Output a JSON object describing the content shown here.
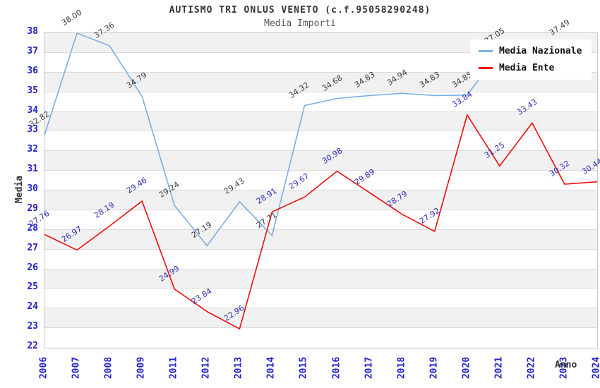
{
  "title": "AUTISMO TRI ONLUS VENETO (c.f.95058290248)",
  "subtitle": "Media Importi",
  "axes": {
    "y_label": "Media",
    "x_label": "Anno"
  },
  "colors": {
    "tick_label": "#2222cc",
    "grid_line": "#dcdcdc",
    "band_gray": "#f1f1f1",
    "band_white": "#ffffff",
    "plot_border": "#c9c9c9",
    "dark_text": "#333333"
  },
  "chart_data": {
    "type": "line",
    "title": "AUTISMO TRI ONLUS VENETO (c.f.95058290248)",
    "subtitle": "Media Importi",
    "xlabel": "Anno",
    "ylabel": "Media",
    "ylim": [
      22,
      38
    ],
    "yticks": [
      38,
      37,
      36,
      35,
      34,
      33,
      32,
      31,
      30,
      29,
      28,
      27,
      26,
      25,
      24,
      23,
      22
    ],
    "grid": "zebra-bands",
    "legend_position": "top-right",
    "x": [
      "2006",
      "2007",
      "2008",
      "2009",
      "2011",
      "2012",
      "2013",
      "2014",
      "2015",
      "2016",
      "2017",
      "2018",
      "2019",
      "2020",
      "2021",
      "2022",
      "2023",
      "2024"
    ],
    "series": [
      {
        "name": "Media Nazionale",
        "color": "#79afe5",
        "label_color": "#3c3c3c",
        "values": [
          32.82,
          38.0,
          37.36,
          34.79,
          29.24,
          27.19,
          29.43,
          27.71,
          34.32,
          34.68,
          34.83,
          34.94,
          34.83,
          34.85,
          37.05,
          null,
          37.49,
          null
        ]
      },
      {
        "name": "Media Ente",
        "color": "#ee0d0d",
        "label_color": "#2d2db4",
        "values": [
          27.76,
          26.97,
          28.19,
          29.46,
          24.99,
          23.84,
          22.96,
          28.91,
          29.67,
          30.98,
          29.89,
          28.79,
          27.92,
          33.84,
          31.25,
          33.43,
          30.32,
          30.44
        ]
      }
    ]
  }
}
